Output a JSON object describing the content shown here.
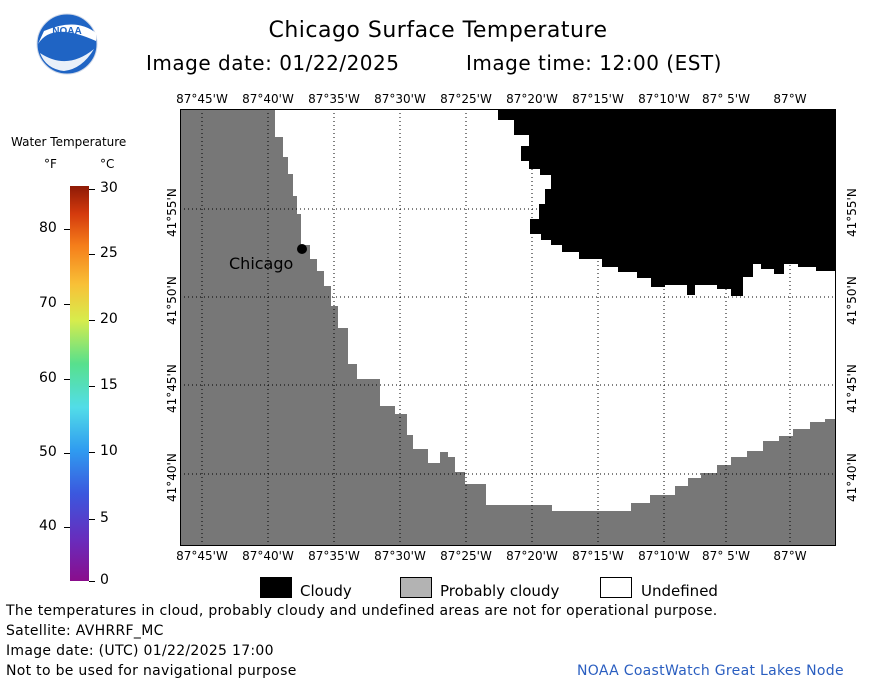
{
  "header": {
    "title": "Chicago Surface Temperature",
    "image_date": "Image date: 01/22/2025",
    "image_time": "Image time: 12:00 (EST)",
    "logo_text": "NOAA"
  },
  "colorbar": {
    "title": "Water Temperature",
    "unit_f": "°F",
    "unit_c": "°C",
    "f_ticks": [
      "80",
      "70",
      "60",
      "50",
      "40"
    ],
    "c_ticks": [
      "30",
      "25",
      "20",
      "15",
      "10",
      "5",
      "0"
    ]
  },
  "map": {
    "lon_labels": [
      "87°45'W",
      "87°40'W",
      "87°35'W",
      "87°30'W",
      "87°25'W",
      "87°20'W",
      "87°15'W",
      "87°10'W",
      "87° 5'W",
      "87°W"
    ],
    "lat_labels": [
      "41°55'N",
      "41°50'N",
      "41°45'N",
      "41°40'N"
    ],
    "city_label": "Chicago",
    "colors": {
      "land": "#777777",
      "cloud": "#000000",
      "undefined": "#ffffff"
    }
  },
  "legend": {
    "cloudy": "Cloudy",
    "probably_cloudy": "Probably cloudy",
    "undefined": "Undefined"
  },
  "footer": {
    "disclaimer": "The temperatures in cloud, probably cloudy and undefined areas are not for operational purpose.",
    "satellite": "Satellite: AVHRRF_MC",
    "utc_date": "Image date: (UTC) 01/22/2025  17:00",
    "navigation": "Not to be used for navigational purpose",
    "credit": "NOAA CoastWatch Great Lakes Node"
  }
}
